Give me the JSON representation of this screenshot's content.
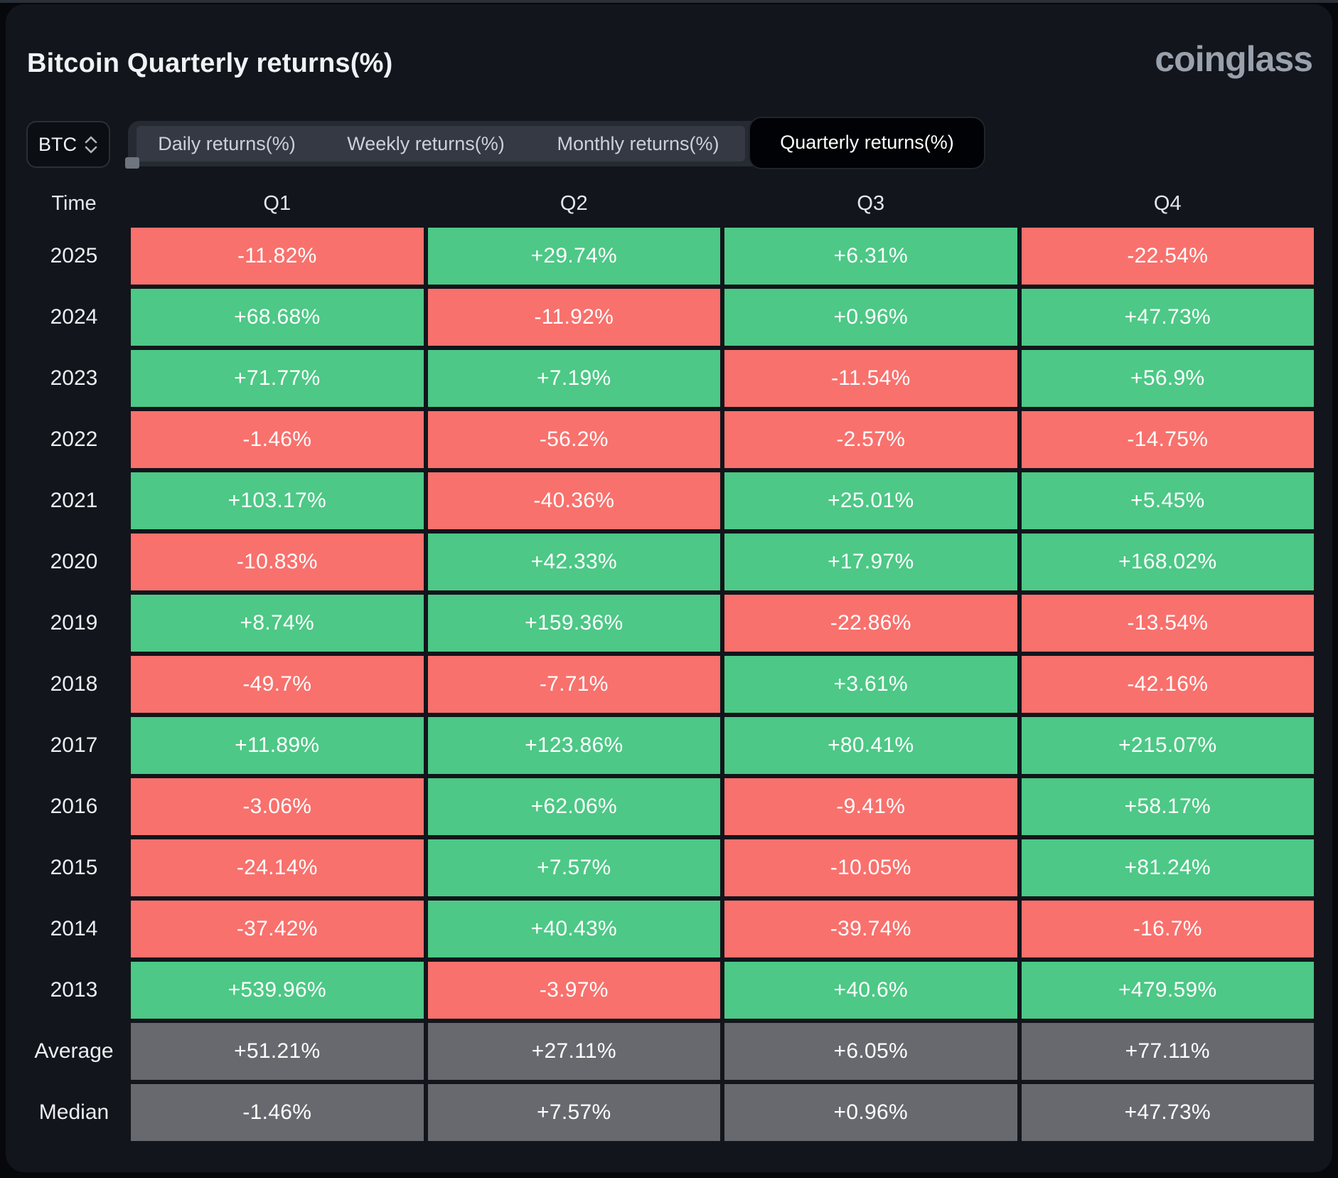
{
  "app": {
    "title": "Bitcoin Quarterly returns(%)",
    "brand": "coinglass"
  },
  "controls": {
    "symbol_select": {
      "value": "BTC",
      "icon": "chevron-updown-icon"
    },
    "tabs": [
      {
        "label": "Daily returns(%)",
        "active": false
      },
      {
        "label": "Weekly returns(%)",
        "active": false
      },
      {
        "label": "Monthly returns(%)",
        "active": false
      },
      {
        "label": "Quarterly returns(%)",
        "active": true
      }
    ]
  },
  "colors": {
    "positive": "#4dc886",
    "negative": "#f8716d",
    "summary": "#67696e",
    "panel_bg": "#12151b",
    "page_bg": "#06080c",
    "tab_strip_bg": "#262a32",
    "active_tab_bg": "#010205"
  },
  "table": {
    "columns": [
      "Time",
      "Q1",
      "Q2",
      "Q3",
      "Q4"
    ],
    "rows": [
      {
        "label": "2025",
        "type": "year",
        "values": [
          "-11.82%",
          "+29.74%",
          "+6.31%",
          "-22.54%"
        ]
      },
      {
        "label": "2024",
        "type": "year",
        "values": [
          "+68.68%",
          "-11.92%",
          "+0.96%",
          "+47.73%"
        ]
      },
      {
        "label": "2023",
        "type": "year",
        "values": [
          "+71.77%",
          "+7.19%",
          "-11.54%",
          "+56.9%"
        ]
      },
      {
        "label": "2022",
        "type": "year",
        "values": [
          "-1.46%",
          "-56.2%",
          "-2.57%",
          "-14.75%"
        ]
      },
      {
        "label": "2021",
        "type": "year",
        "values": [
          "+103.17%",
          "-40.36%",
          "+25.01%",
          "+5.45%"
        ]
      },
      {
        "label": "2020",
        "type": "year",
        "values": [
          "-10.83%",
          "+42.33%",
          "+17.97%",
          "+168.02%"
        ]
      },
      {
        "label": "2019",
        "type": "year",
        "values": [
          "+8.74%",
          "+159.36%",
          "-22.86%",
          "-13.54%"
        ]
      },
      {
        "label": "2018",
        "type": "year",
        "values": [
          "-49.7%",
          "-7.71%",
          "+3.61%",
          "-42.16%"
        ]
      },
      {
        "label": "2017",
        "type": "year",
        "values": [
          "+11.89%",
          "+123.86%",
          "+80.41%",
          "+215.07%"
        ]
      },
      {
        "label": "2016",
        "type": "year",
        "values": [
          "-3.06%",
          "+62.06%",
          "-9.41%",
          "+58.17%"
        ]
      },
      {
        "label": "2015",
        "type": "year",
        "values": [
          "-24.14%",
          "+7.57%",
          "-10.05%",
          "+81.24%"
        ]
      },
      {
        "label": "2014",
        "type": "year",
        "values": [
          "-37.42%",
          "+40.43%",
          "-39.74%",
          "-16.7%"
        ]
      },
      {
        "label": "2013",
        "type": "year",
        "values": [
          "+539.96%",
          "-3.97%",
          "+40.6%",
          "+479.59%"
        ]
      },
      {
        "label": "Average",
        "type": "summary",
        "values": [
          "+51.21%",
          "+27.11%",
          "+6.05%",
          "+77.11%"
        ]
      },
      {
        "label": "Median",
        "type": "summary",
        "values": [
          "-1.46%",
          "+7.57%",
          "+0.96%",
          "+47.73%"
        ]
      }
    ]
  },
  "chart_data": {
    "type": "heatmap",
    "title": "Bitcoin Quarterly returns(%)",
    "columns": [
      "Q1",
      "Q2",
      "Q3",
      "Q4"
    ],
    "rows": [
      "2025",
      "2024",
      "2023",
      "2022",
      "2021",
      "2020",
      "2019",
      "2018",
      "2017",
      "2016",
      "2015",
      "2014",
      "2013",
      "Average",
      "Median"
    ],
    "values_pct": {
      "2025": [
        -11.82,
        29.74,
        6.31,
        -22.54
      ],
      "2024": [
        68.68,
        -11.92,
        0.96,
        47.73
      ],
      "2023": [
        71.77,
        7.19,
        -11.54,
        56.9
      ],
      "2022": [
        -1.46,
        -56.2,
        -2.57,
        -14.75
      ],
      "2021": [
        103.17,
        -40.36,
        25.01,
        5.45
      ],
      "2020": [
        -10.83,
        42.33,
        17.97,
        168.02
      ],
      "2019": [
        8.74,
        159.36,
        -22.86,
        -13.54
      ],
      "2018": [
        -49.7,
        -7.71,
        3.61,
        -42.16
      ],
      "2017": [
        11.89,
        123.86,
        80.41,
        215.07
      ],
      "2016": [
        -3.06,
        62.06,
        -9.41,
        58.17
      ],
      "2015": [
        -24.14,
        7.57,
        -10.05,
        81.24
      ],
      "2014": [
        -37.42,
        40.43,
        -39.74,
        -16.7
      ],
      "2013": [
        539.96,
        -3.97,
        40.6,
        479.59
      ],
      "Average": [
        51.21,
        27.11,
        6.05,
        77.11
      ],
      "Median": [
        -1.46,
        7.57,
        0.96,
        47.73
      ]
    },
    "color_rule": "positive = green, negative = red, Average/Median summary rows = gray"
  }
}
